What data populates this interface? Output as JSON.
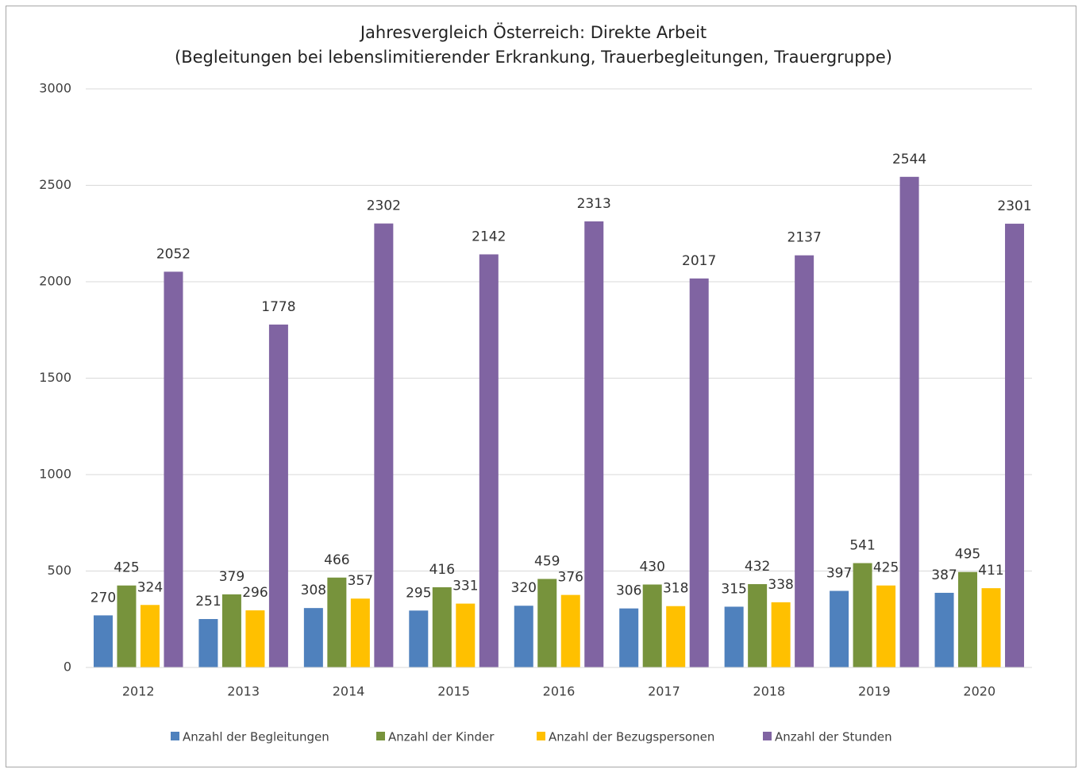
{
  "chart_data": {
    "type": "bar",
    "title": "Jahresvergleich Österreich: Direkte Arbeit",
    "subtitle": "(Begleitungen bei lebenslimitierender Erkrankung, Trauerbegleitungen, Trauergruppe)",
    "categories": [
      "2012",
      "2013",
      "2014",
      "2015",
      "2016",
      "2017",
      "2018",
      "2019",
      "2020"
    ],
    "series": [
      {
        "name": "Anzahl der Begleitungen",
        "color": "#4f81bd",
        "values": [
          270,
          251,
          308,
          295,
          320,
          306,
          315,
          397,
          387
        ]
      },
      {
        "name": "Anzahl der Kinder",
        "color": "#77933c",
        "values": [
          425,
          379,
          466,
          416,
          459,
          430,
          432,
          541,
          495
        ]
      },
      {
        "name": "Anzahl der Bezugspersonen",
        "color": "#ffc000",
        "values": [
          324,
          296,
          357,
          331,
          376,
          318,
          338,
          425,
          411
        ]
      },
      {
        "name": "Anzahl der Stunden",
        "color": "#8064a2",
        "values": [
          2052,
          1778,
          2302,
          2142,
          2313,
          2017,
          2137,
          2544,
          2301
        ]
      }
    ],
    "ylim": [
      0,
      3000
    ],
    "yticks": [
      0,
      500,
      1000,
      1500,
      2000,
      2500,
      3000
    ],
    "grid": true,
    "legend": "bottom"
  }
}
